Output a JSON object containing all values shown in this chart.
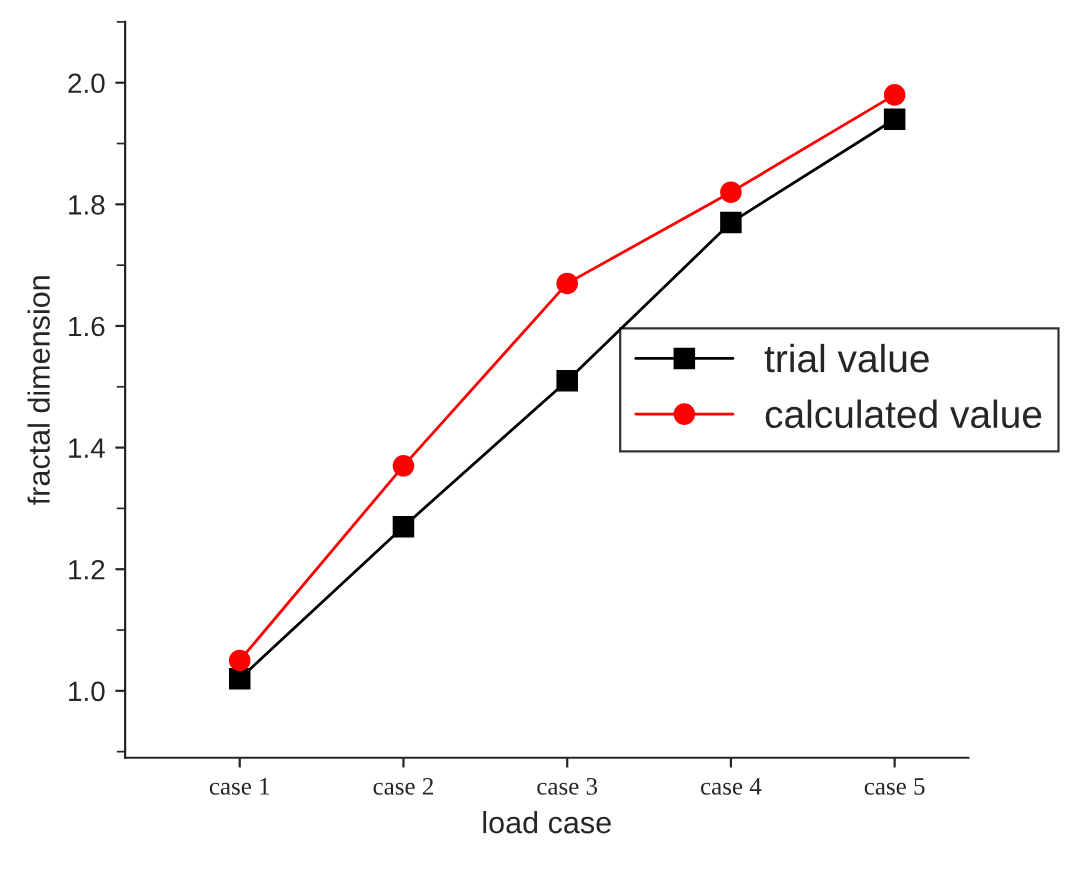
{
  "chart_data": {
    "type": "line",
    "xlabel": "load case",
    "ylabel": "fractal dimension",
    "categories": [
      "case 1",
      "case 2",
      "case 3",
      "case 4",
      "case 5"
    ],
    "series": [
      {
        "name": "trial value",
        "color": "#000000",
        "marker": "square",
        "values": [
          1.02,
          1.27,
          1.51,
          1.77,
          1.94
        ]
      },
      {
        "name": "calculated value",
        "color": "#ff0000",
        "marker": "circle",
        "values": [
          1.05,
          1.37,
          1.67,
          1.82,
          1.98
        ]
      }
    ],
    "ylim": [
      0.89,
      2.1
    ],
    "yticks": [
      {
        "value": 1,
        "label": "1.0"
      },
      1.2,
      1.4,
      1.6,
      1.8,
      {
        "value": 2,
        "label": "2.0"
      }
    ],
    "grid": false,
    "legend": "right",
    "line_style": "solid"
  }
}
